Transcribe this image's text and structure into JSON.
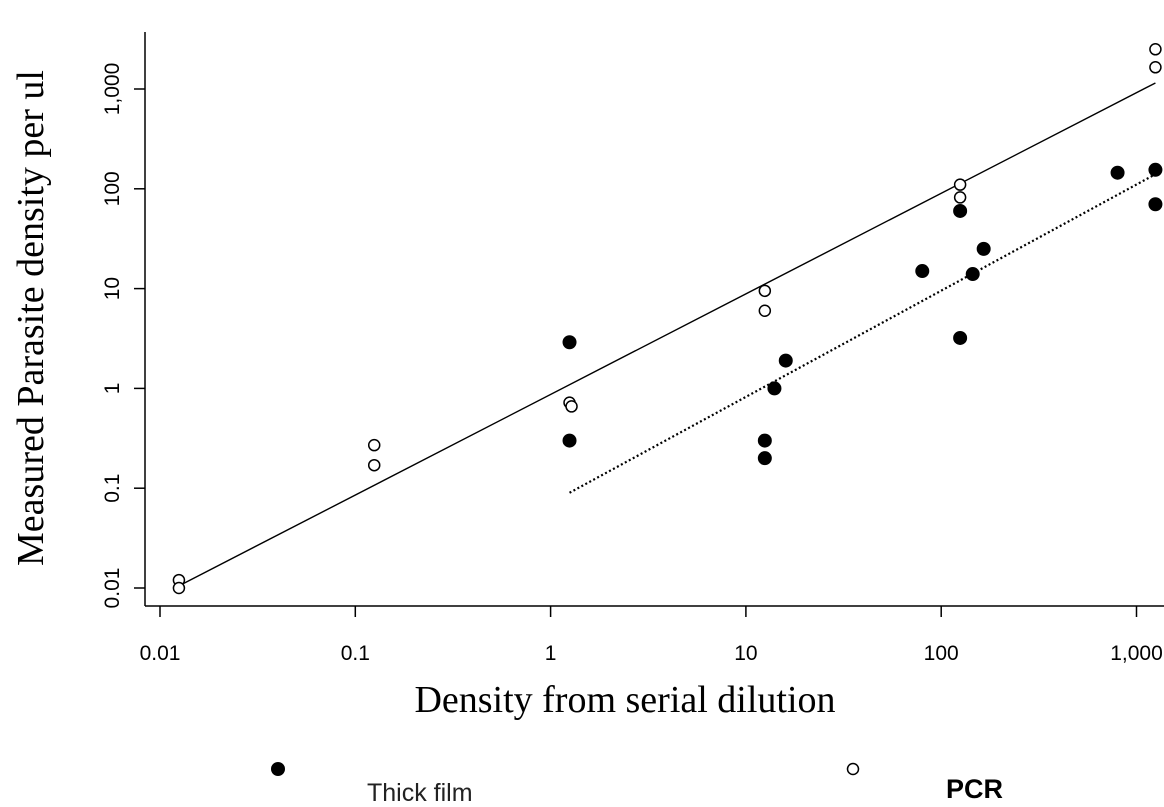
{
  "chart_data": {
    "type": "scatter",
    "title": "",
    "xlabel": "Density from serial dilution",
    "ylabel": "Measured Parasite density per ul",
    "x_scale": "log",
    "y_scale": "log",
    "xlim": [
      0.01,
      1250
    ],
    "ylim": [
      0.007,
      3500
    ],
    "x_ticks": [
      0.01,
      0.1,
      1,
      10,
      100,
      1000
    ],
    "x_tick_labels": [
      "0.01",
      "0.1",
      "1",
      "10",
      "100",
      "1,000"
    ],
    "y_ticks": [
      0.01,
      0.1,
      1,
      10,
      100,
      1000
    ],
    "y_tick_labels": [
      "0.01",
      "0.1",
      "1",
      "10",
      "100",
      "1,000"
    ],
    "grid": false,
    "legend_position": "bottom",
    "series": [
      {
        "name": "Thick film",
        "marker": "filled-circle",
        "color": "#000000",
        "points": [
          {
            "x": 1.25,
            "y": 2.9
          },
          {
            "x": 1.25,
            "y": 0.3
          },
          {
            "x": 12.5,
            "y": 0.3
          },
          {
            "x": 12.5,
            "y": 0.2
          },
          {
            "x": 14,
            "y": 1.0
          },
          {
            "x": 16,
            "y": 1.9
          },
          {
            "x": 80,
            "y": 15
          },
          {
            "x": 125,
            "y": 60
          },
          {
            "x": 125,
            "y": 3.2
          },
          {
            "x": 145,
            "y": 14
          },
          {
            "x": 165,
            "y": 25
          },
          {
            "x": 800,
            "y": 145
          },
          {
            "x": 1250,
            "y": 155
          },
          {
            "x": 1250,
            "y": 70
          }
        ],
        "trend": {
          "style": "dotted",
          "x1": 1.25,
          "y1": 0.09,
          "x2": 1250,
          "y2": 140
        }
      },
      {
        "name": "PCR",
        "marker": "open-circle",
        "color": "#000000",
        "points": [
          {
            "x": 0.0125,
            "y": 0.012
          },
          {
            "x": 0.0125,
            "y": 0.01
          },
          {
            "x": 0.125,
            "y": 0.27
          },
          {
            "x": 0.125,
            "y": 0.17
          },
          {
            "x": 1.25,
            "y": 0.72
          },
          {
            "x": 1.28,
            "y": 0.66
          },
          {
            "x": 12.5,
            "y": 9.5
          },
          {
            "x": 12.5,
            "y": 6.0
          },
          {
            "x": 125,
            "y": 110
          },
          {
            "x": 125,
            "y": 82
          },
          {
            "x": 1250,
            "y": 2500
          },
          {
            "x": 1250,
            "y": 1650
          }
        ],
        "trend": {
          "style": "solid",
          "x1": 0.0125,
          "y1": 0.0105,
          "x2": 1250,
          "y2": 1150
        }
      }
    ]
  }
}
